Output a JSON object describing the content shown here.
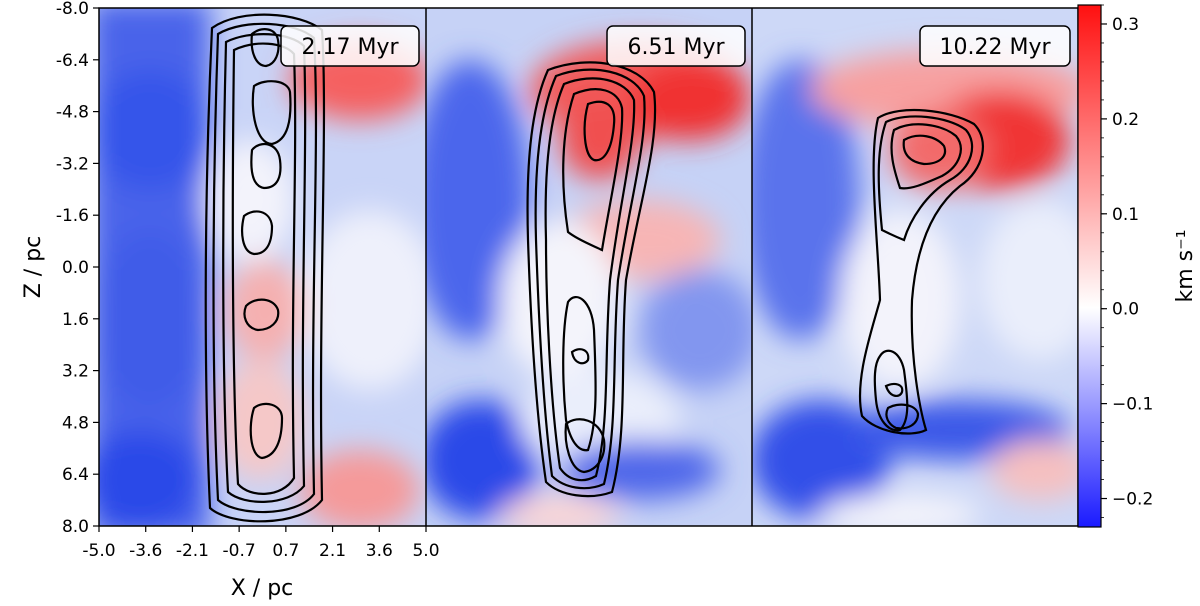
{
  "chart_data": {
    "type": "heatmap",
    "panels": [
      {
        "label": "2.17 Myr"
      },
      {
        "label": "6.51 Myr"
      },
      {
        "label": "10.22 Myr"
      }
    ],
    "xlabel": "X / pc",
    "ylabel": "Z / pc",
    "xlim": [
      -5.0,
      5.0
    ],
    "ylim": [
      -8.0,
      8.0
    ],
    "y_inverted": true,
    "x_ticks": [
      "-5.0",
      "-3.6",
      "-2.1",
      "-0.7",
      "0.7",
      "2.1",
      "3.6",
      "5.0"
    ],
    "y_ticks": [
      "-8.0",
      "-6.4",
      "-4.8",
      "-3.2",
      "-1.6",
      "0.0",
      "1.6",
      "3.2",
      "4.8",
      "6.4",
      "8.0"
    ],
    "colorbar": {
      "label": "km s⁻¹",
      "range": [
        -0.23,
        0.32
      ],
      "ticks": [
        "0.3",
        "0.2",
        "0.1",
        "0.0",
        "−0.1",
        "−0.2"
      ],
      "cmap": "bwr"
    },
    "colors": {
      "negative": "#0000ff",
      "zero": "#ffffff",
      "positive": "#ff0000"
    }
  }
}
